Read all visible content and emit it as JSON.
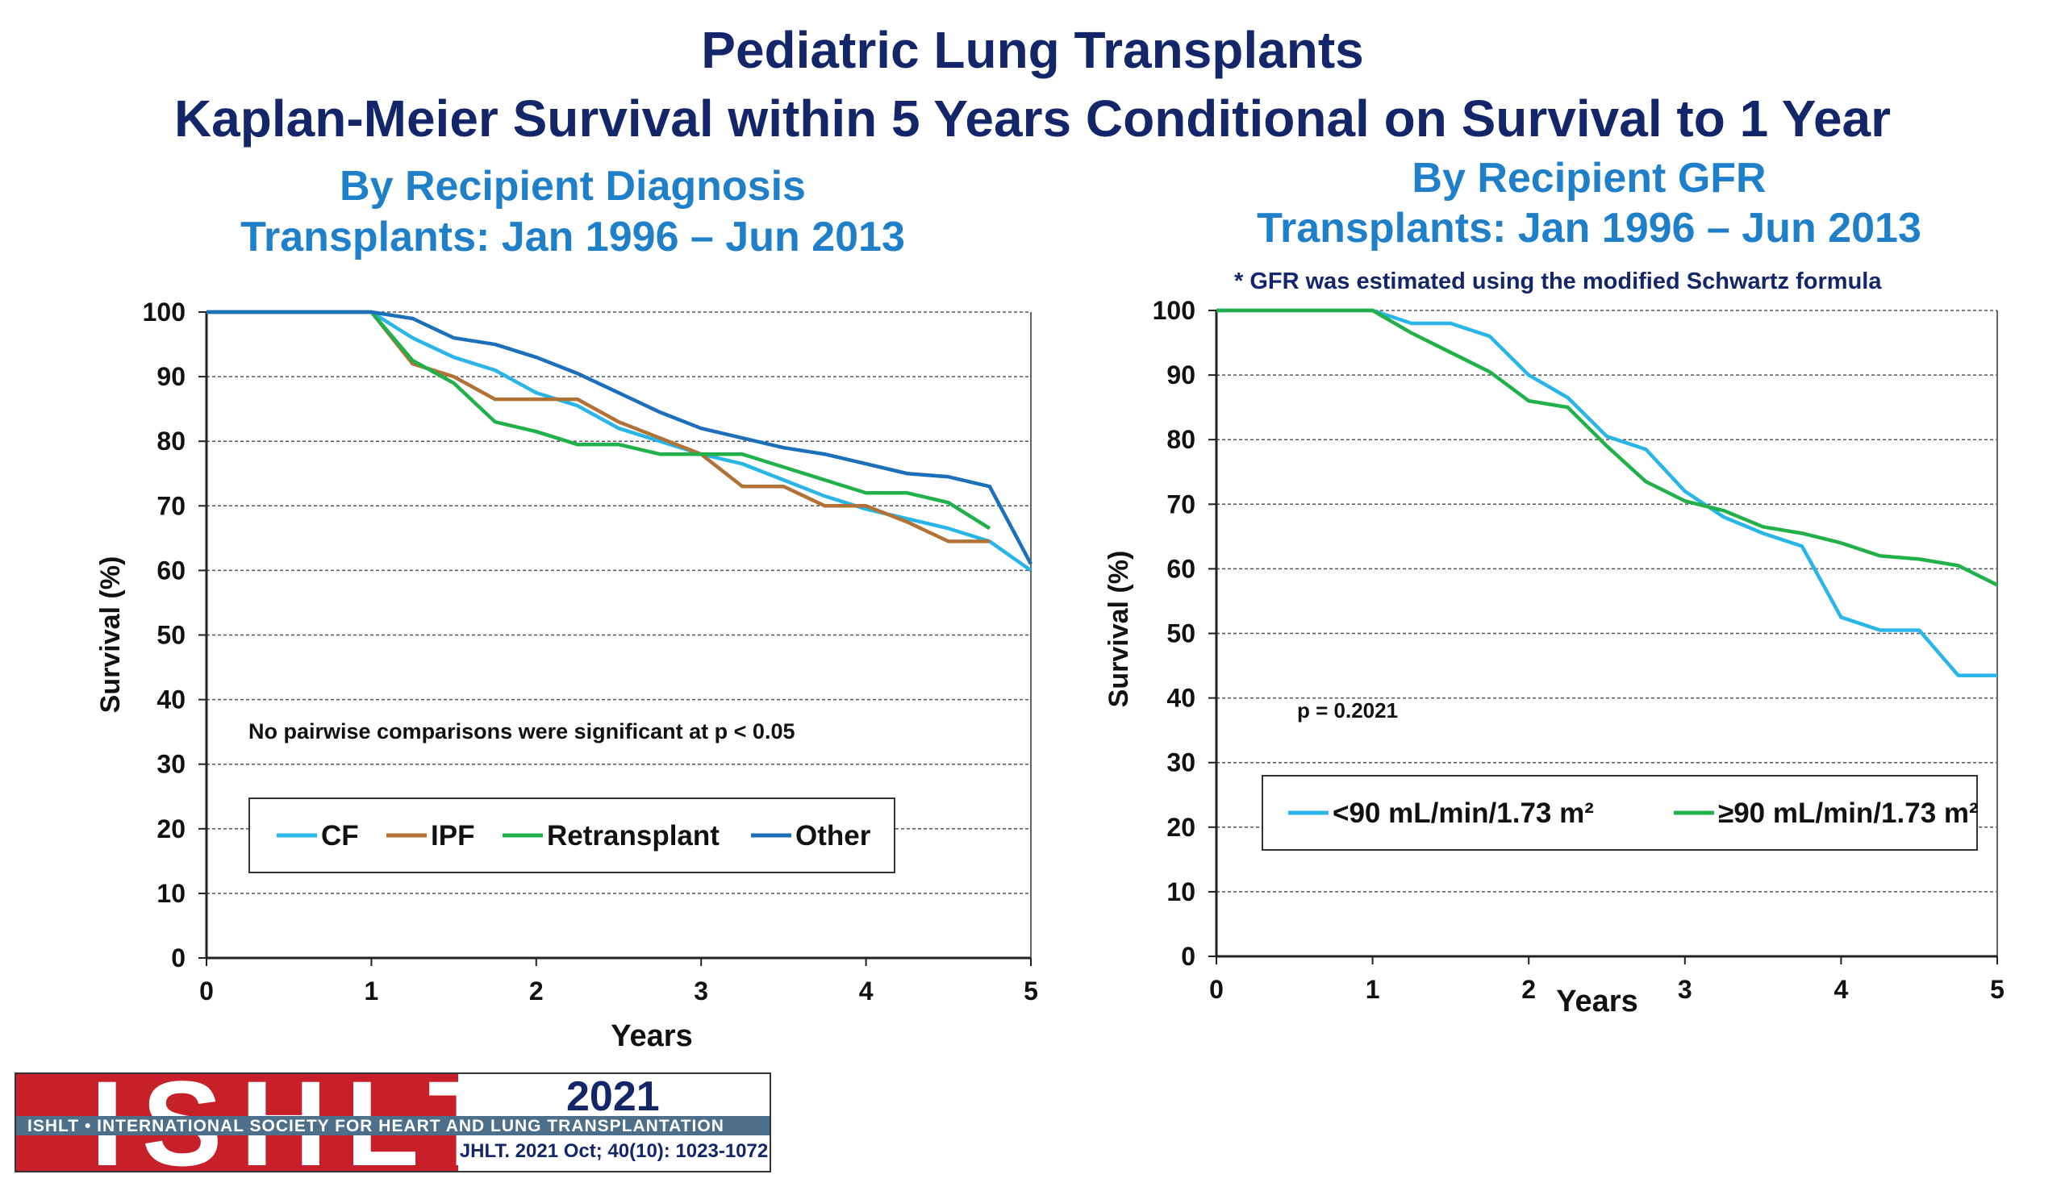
{
  "titles": {
    "line1": "Pediatric Lung Transplants",
    "line2": "Kaplan-Meier Survival within 5 Years Conditional on Survival to 1 Year"
  },
  "logo": {
    "wordmark": "ISHLT",
    "band": "ISHLT • INTERNATIONAL SOCIETY FOR HEART AND LUNG TRANSPLANTATION",
    "year": "2021",
    "citation": "JHLT. 2021 Oct; 40(10): 1023-1072"
  },
  "colors": {
    "title": "#14266a",
    "subtitle": "#1f7fc9",
    "cf": "#29b5e8",
    "ipf": "#b07236",
    "retransplant": "#22b04b",
    "other": "#1c6fba",
    "gfr_low": "#29b5e8",
    "gfr_high": "#22b04b"
  },
  "chart_data": [
    {
      "type": "line",
      "subtitle_line1": "By Recipient Diagnosis",
      "subtitle_line2": "Transplants: Jan 1996 – Jun 2013",
      "xlabel": "Years",
      "ylabel": "Survival (%)",
      "xlim": [
        0,
        5
      ],
      "ylim": [
        0,
        100
      ],
      "xticks": [
        0,
        1,
        2,
        3,
        4,
        5
      ],
      "yticks": [
        0,
        10,
        20,
        30,
        40,
        50,
        60,
        70,
        80,
        90,
        100
      ],
      "grid": "horizontal dashed",
      "annotation": "No pairwise comparisons were significant at p < 0.05",
      "legend_position": "lower-left",
      "series": [
        {
          "name": "CF",
          "color": "#29b5e8",
          "x": [
            0,
            1,
            1.25,
            1.5,
            1.75,
            2,
            2.25,
            2.5,
            2.75,
            3,
            3.25,
            3.5,
            3.75,
            4,
            4.25,
            4.5,
            4.75,
            5
          ],
          "y": [
            100,
            100,
            96,
            93,
            91,
            87.5,
            85.5,
            82,
            80,
            78,
            76.5,
            74,
            71.5,
            69.5,
            68,
            66.5,
            64.5,
            60
          ]
        },
        {
          "name": "IPF",
          "color": "#b07236",
          "x": [
            0,
            1,
            1.25,
            1.5,
            1.75,
            2,
            2.25,
            2.5,
            2.75,
            3,
            3.25,
            3.5,
            3.75,
            4,
            4.25,
            4.5,
            4.75
          ],
          "y": [
            100,
            100,
            92,
            90,
            86.5,
            86.5,
            86.5,
            83,
            80.5,
            78,
            73,
            73,
            70,
            70,
            67.5,
            64.5,
            64.5
          ]
        },
        {
          "name": "Retransplant",
          "color": "#22b04b",
          "x": [
            0,
            1,
            1.25,
            1.5,
            1.75,
            2,
            2.25,
            2.5,
            2.75,
            3,
            3.25,
            3.5,
            3.75,
            4,
            4.25,
            4.5,
            4.75
          ],
          "y": [
            100,
            100,
            92.5,
            89,
            83,
            81.5,
            79.5,
            79.5,
            78,
            78,
            78,
            76,
            74,
            72,
            72,
            70.5,
            66.5
          ]
        },
        {
          "name": "Other",
          "color": "#1c6fba",
          "x": [
            0,
            1,
            1.25,
            1.5,
            1.75,
            2,
            2.25,
            2.5,
            2.75,
            3,
            3.25,
            3.5,
            3.75,
            4,
            4.25,
            4.5,
            4.75,
            5
          ],
          "y": [
            100,
            100,
            99,
            96,
            95,
            93,
            90.5,
            87.5,
            84.5,
            82,
            80.5,
            79,
            78,
            76.5,
            75,
            74.5,
            73,
            61
          ]
        }
      ]
    },
    {
      "type": "line",
      "subtitle_line1": "By Recipient GFR",
      "subtitle_line2": "Transplants: Jan 1996 – Jun 2013",
      "footnote": "* GFR was estimated using the modified Schwartz formula",
      "xlabel": "Years",
      "ylabel": "Survival (%)",
      "xlim": [
        0,
        5
      ],
      "ylim": [
        0,
        100
      ],
      "xticks": [
        0,
        1,
        2,
        3,
        4,
        5
      ],
      "yticks": [
        0,
        10,
        20,
        30,
        40,
        50,
        60,
        70,
        80,
        90,
        100
      ],
      "grid": "horizontal dashed",
      "annotation": "p = 0.2021",
      "legend_position": "lower-center",
      "series": [
        {
          "name": "<90 mL/min/1.73 m²",
          "color": "#29b5e8",
          "x": [
            0,
            1,
            1.25,
            1.5,
            1.75,
            2,
            2.25,
            2.5,
            2.75,
            3,
            3.25,
            3.5,
            3.75,
            4,
            4.25,
            4.5,
            4.75,
            5
          ],
          "y": [
            100,
            100,
            98,
            98,
            96,
            90,
            86.5,
            80.5,
            78.5,
            72,
            68,
            65.5,
            63.5,
            52.5,
            50.5,
            50.5,
            43.5,
            43.5
          ]
        },
        {
          "name": "≥90 mL/min/1.73 m²",
          "color": "#22b04b",
          "x": [
            0,
            1,
            1.25,
            1.5,
            1.75,
            2,
            2.25,
            2.5,
            2.75,
            3,
            3.25,
            3.5,
            3.75,
            4,
            4.25,
            4.5,
            4.75,
            5
          ],
          "y": [
            100,
            100,
            96.5,
            93.5,
            90.5,
            86,
            85,
            79,
            73.5,
            70.5,
            69,
            66.5,
            65.5,
            64,
            62,
            61.5,
            60.5,
            57.5
          ]
        }
      ]
    }
  ]
}
